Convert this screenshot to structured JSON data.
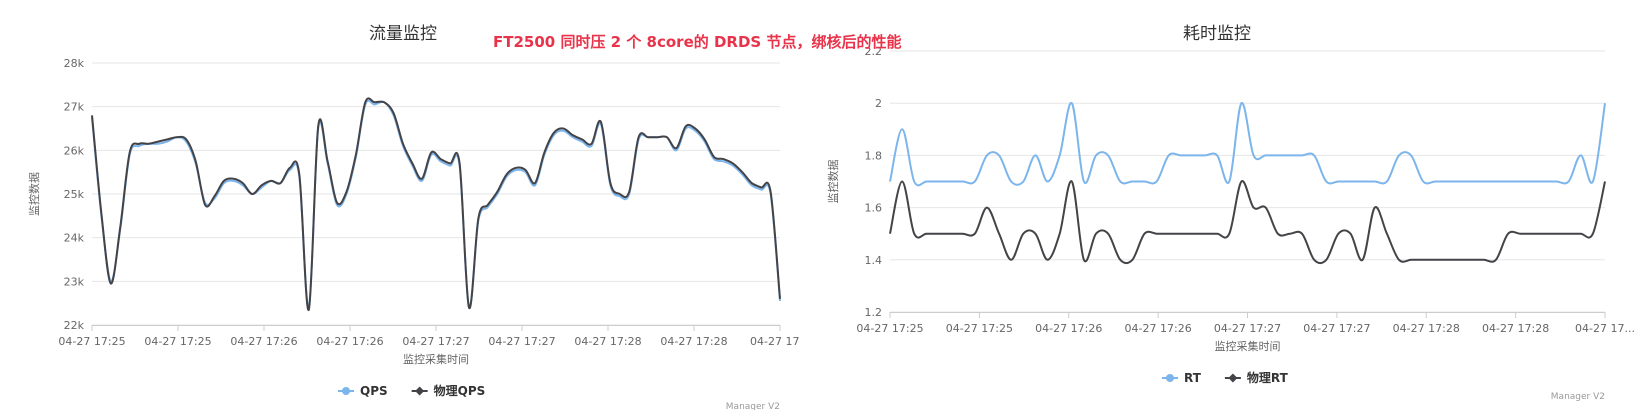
{
  "banner": "FT2500 同时压 2 个 8core的 DRDS 节点，绑核后的性能",
  "chart_data": [
    {
      "type": "line",
      "title": "流量监控",
      "xlabel": "监控采集时间",
      "ylabel": "监控数据",
      "ylim": [
        22000,
        28000
      ],
      "yticks": [
        {
          "value": 22000,
          "label": "22k"
        },
        {
          "value": 23000,
          "label": "23k"
        },
        {
          "value": 24000,
          "label": "24k"
        },
        {
          "value": 25000,
          "label": "25k"
        },
        {
          "value": 26000,
          "label": "26k"
        },
        {
          "value": 27000,
          "label": "27k"
        },
        {
          "value": 28000,
          "label": "28k"
        }
      ],
      "xticks": [
        "04-27 17:25",
        "04-27 17:25",
        "04-27 17:26",
        "04-27 17:26",
        "04-27 17:27",
        "04-27 17:27",
        "04-27 17:28",
        "04-27 17:28",
        "04-27 17..."
      ],
      "grid": true,
      "legend_position": "bottom-center",
      "credit": "Manager V2",
      "series": [
        {
          "name": "QPS",
          "color": "#7cb5ec",
          "values": [
            26750,
            24500,
            23000,
            24200,
            25900,
            26100,
            26150,
            26150,
            26200,
            26300,
            26200,
            25700,
            24800,
            24900,
            25250,
            25300,
            25200,
            25000,
            25150,
            25300,
            25250,
            25550,
            25400,
            22400,
            26500,
            25700,
            24750,
            25000,
            25850,
            27050,
            27050,
            27100,
            26800,
            26100,
            25650,
            25300,
            25900,
            25750,
            25650,
            25650,
            22400,
            24400,
            24700,
            25000,
            25400,
            25550,
            25500,
            25200,
            25900,
            26350,
            26450,
            26300,
            26200,
            26100,
            26600,
            25200,
            24950,
            25000,
            26250,
            26300,
            26300,
            26300,
            26000,
            26500,
            26450,
            26200,
            25800,
            25750,
            25650,
            25450,
            25200,
            25100,
            25000,
            22550
          ]
        },
        {
          "name": "物理QPS",
          "color": "#434348",
          "values": [
            26800,
            24550,
            22950,
            24250,
            25950,
            26150,
            26150,
            26200,
            26250,
            26300,
            26250,
            25750,
            24750,
            24950,
            25300,
            25350,
            25250,
            25000,
            25200,
            25300,
            25250,
            25600,
            25450,
            22350,
            26550,
            25750,
            24800,
            25050,
            25900,
            27100,
            27100,
            27100,
            26850,
            26150,
            25700,
            25350,
            25950,
            25800,
            25700,
            25700,
            22400,
            24450,
            24750,
            25050,
            25450,
            25600,
            25550,
            25250,
            25950,
            26400,
            26500,
            26350,
            26250,
            26150,
            26650,
            25250,
            25000,
            25050,
            26300,
            26300,
            26300,
            26300,
            26050,
            26550,
            26500,
            26250,
            25850,
            25800,
            25700,
            25500,
            25250,
            25150,
            25050,
            22600
          ]
        }
      ]
    },
    {
      "type": "line",
      "title": "耗时监控",
      "xlabel": "监控采集时间",
      "ylabel": "监控数据",
      "ylim": [
        1.2,
        2.2
      ],
      "yticks": [
        {
          "value": 1.2,
          "label": "1.2"
        },
        {
          "value": 1.4,
          "label": "1.4"
        },
        {
          "value": 1.6,
          "label": "1.6"
        },
        {
          "value": 1.8,
          "label": "1.8"
        },
        {
          "value": 2.0,
          "label": "2"
        },
        {
          "value": 2.2,
          "label": "2.2"
        }
      ],
      "xticks": [
        "04-27 17:25",
        "04-27 17:25",
        "04-27 17:26",
        "04-27 17:26",
        "04-27 17:27",
        "04-27 17:27",
        "04-27 17:28",
        "04-27 17:28",
        "04-27 17..."
      ],
      "grid": true,
      "legend_position": "bottom-center",
      "credit": "Manager V2",
      "series": [
        {
          "name": "RT",
          "color": "#7cb5ec",
          "values": [
            1.7,
            1.9,
            1.7,
            1.7,
            1.7,
            1.7,
            1.7,
            1.7,
            1.8,
            1.8,
            1.7,
            1.7,
            1.8,
            1.7,
            1.8,
            2.0,
            1.7,
            1.8,
            1.8,
            1.7,
            1.7,
            1.7,
            1.7,
            1.8,
            1.8,
            1.8,
            1.8,
            1.8,
            1.7,
            2.0,
            1.8,
            1.8,
            1.8,
            1.8,
            1.8,
            1.8,
            1.7,
            1.7,
            1.7,
            1.7,
            1.7,
            1.7,
            1.8,
            1.8,
            1.7,
            1.7,
            1.7,
            1.7,
            1.7,
            1.7,
            1.7,
            1.7,
            1.7,
            1.7,
            1.7,
            1.7,
            1.7,
            1.8,
            1.7,
            2.0
          ]
        },
        {
          "name": "物理RT",
          "color": "#434348",
          "values": [
            1.5,
            1.7,
            1.5,
            1.5,
            1.5,
            1.5,
            1.5,
            1.5,
            1.6,
            1.5,
            1.4,
            1.5,
            1.5,
            1.4,
            1.5,
            1.7,
            1.4,
            1.5,
            1.5,
            1.4,
            1.4,
            1.5,
            1.5,
            1.5,
            1.5,
            1.5,
            1.5,
            1.5,
            1.5,
            1.7,
            1.6,
            1.6,
            1.5,
            1.5,
            1.5,
            1.4,
            1.4,
            1.5,
            1.5,
            1.4,
            1.6,
            1.5,
            1.4,
            1.4,
            1.4,
            1.4,
            1.4,
            1.4,
            1.4,
            1.4,
            1.4,
            1.5,
            1.5,
            1.5,
            1.5,
            1.5,
            1.5,
            1.5,
            1.5,
            1.7
          ]
        }
      ]
    }
  ]
}
